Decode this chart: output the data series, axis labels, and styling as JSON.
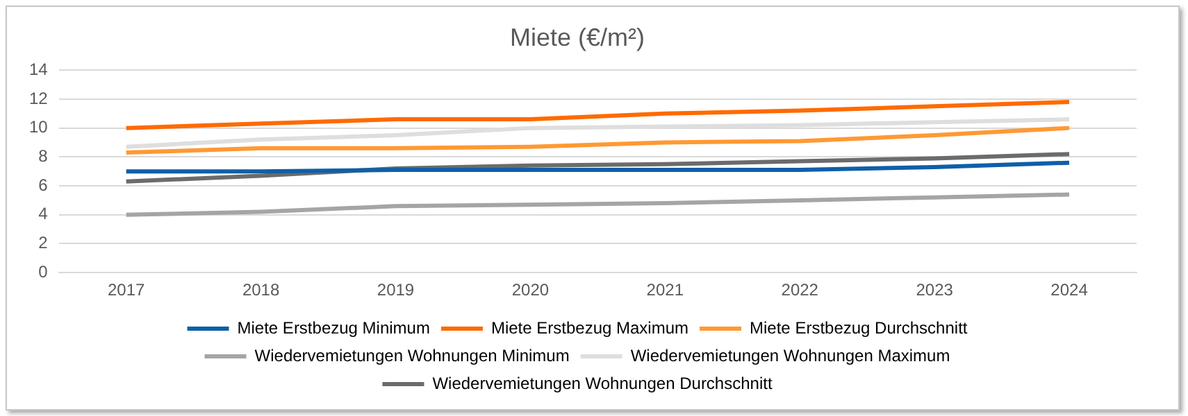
{
  "chart_data": {
    "type": "line",
    "title": "Miete (€/m²)",
    "categories": [
      "2017",
      "2018",
      "2019",
      "2020",
      "2021",
      "2022",
      "2023",
      "2024"
    ],
    "series": [
      {
        "name": "Miete Erstbezug Minimum",
        "color": "#0f5fa8",
        "values": [
          7.0,
          7.0,
          7.1,
          7.1,
          7.1,
          7.1,
          7.3,
          7.6
        ]
      },
      {
        "name": "Miete Erstbezug Maximum",
        "color": "#ff6a00",
        "values": [
          10.0,
          10.3,
          10.6,
          10.6,
          11.0,
          11.2,
          11.5,
          11.8
        ]
      },
      {
        "name": "Miete Erstbezug Durchschnitt",
        "color": "#ff9933",
        "values": [
          8.3,
          8.6,
          8.6,
          8.7,
          9.0,
          9.1,
          9.5,
          10.0
        ]
      },
      {
        "name": "Wiedervemietungen Wohnungen Minimum",
        "color": "#a5a5a5",
        "values": [
          4.0,
          4.2,
          4.6,
          4.7,
          4.8,
          5.0,
          5.2,
          5.4
        ]
      },
      {
        "name": "Wiedervemietungen Wohnungen Maximum",
        "color": "#dedede",
        "values": [
          8.7,
          9.2,
          9.5,
          10.0,
          10.1,
          10.2,
          10.4,
          10.6
        ]
      },
      {
        "name": "Wiedervemietungen Wohnungen Durchschnitt",
        "color": "#6b6b6b",
        "values": [
          6.3,
          6.7,
          7.2,
          7.4,
          7.5,
          7.7,
          7.9,
          8.2
        ]
      }
    ],
    "ylim": [
      0,
      14
    ],
    "yticks": [
      0,
      2,
      4,
      6,
      8,
      10,
      12,
      14
    ],
    "grid": "y",
    "legend": "bottom",
    "marker": "none",
    "line_style": "solid"
  }
}
